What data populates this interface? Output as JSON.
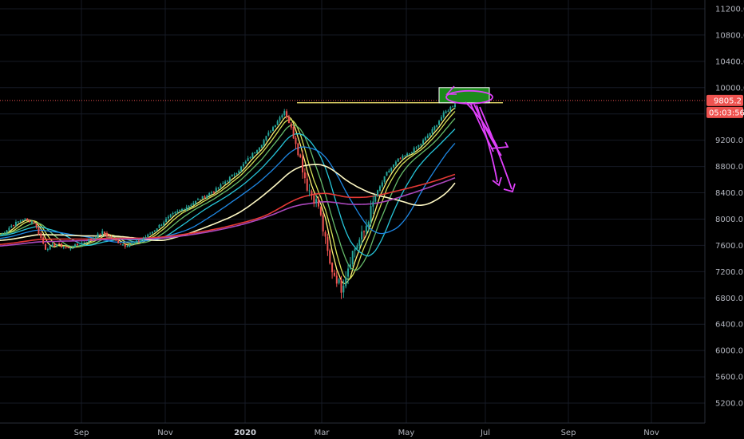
{
  "chart_data": {
    "type": "candlestick",
    "y_axis": {
      "ticks": [
        "11200.0",
        "10800.0",
        "10400.0",
        "10000.0",
        "9600.0",
        "9200.0",
        "8800.0",
        "8400.0",
        "8000.0",
        "7600.0",
        "7200.0",
        "6800.0",
        "6400.0",
        "6000.0",
        "5600.0",
        "5200.0"
      ],
      "range": [
        5100,
        11300
      ]
    },
    "x_axis": {
      "ticks": [
        {
          "label": "Sep",
          "bold": false
        },
        {
          "label": "Nov",
          "bold": false
        },
        {
          "label": "2020",
          "bold": true
        },
        {
          "label": "Mar",
          "bold": false
        },
        {
          "label": "May",
          "bold": false
        },
        {
          "label": "Jul",
          "bold": false
        },
        {
          "label": "Sep",
          "bold": false
        },
        {
          "label": "Nov",
          "bold": false
        }
      ]
    },
    "last_price": {
      "value": "9805.2",
      "color": "#ef5350"
    },
    "countdown": {
      "value": "05:03:56",
      "color": "#ef5350"
    },
    "resistance_level": 9770,
    "close_path": [
      [
        0,
        7750
      ],
      [
        5,
        7900
      ],
      [
        10,
        8000
      ],
      [
        15,
        7950
      ],
      [
        20,
        7550
      ],
      [
        25,
        7620
      ],
      [
        30,
        7550
      ],
      [
        35,
        7620
      ],
      [
        40,
        7700
      ],
      [
        45,
        7800
      ],
      [
        50,
        7680
      ],
      [
        55,
        7600
      ],
      [
        60,
        7650
      ],
      [
        65,
        7750
      ],
      [
        70,
        7900
      ],
      [
        75,
        8050
      ],
      [
        80,
        8150
      ],
      [
        85,
        8250
      ],
      [
        90,
        8350
      ],
      [
        95,
        8450
      ],
      [
        100,
        8600
      ],
      [
        105,
        8750
      ],
      [
        110,
        8950
      ],
      [
        115,
        9150
      ],
      [
        120,
        9400
      ],
      [
        125,
        9650
      ],
      [
        130,
        9200
      ],
      [
        135,
        8500
      ],
      [
        140,
        8200
      ],
      [
        145,
        7300
      ],
      [
        150,
        6950
      ],
      [
        155,
        7500
      ],
      [
        160,
        7800
      ],
      [
        165,
        8350
      ],
      [
        170,
        8700
      ],
      [
        175,
        8900
      ],
      [
        180,
        9000
      ],
      [
        185,
        9150
      ],
      [
        190,
        9350
      ],
      [
        195,
        9600
      ],
      [
        200,
        9760
      ]
    ],
    "series": [
      {
        "color": "#fff176",
        "period": 5
      },
      {
        "color": "#d4e157",
        "period": 8
      },
      {
        "color": "#66bb6a",
        "period": 13
      },
      {
        "color": "#26c6da",
        "period": 21
      },
      {
        "color": "#1e88e5",
        "period": 34
      },
      {
        "color": "#fff9c4",
        "period": 55
      },
      {
        "color": "#e53935",
        "period": 100
      },
      {
        "color": "#ab47bc",
        "period": 120
      }
    ],
    "colors": {
      "up": "#26a69a",
      "down": "#ef5350",
      "drawing": "#e040fb",
      "highlight_box": "#1b8a1b",
      "resistance_line": "#fff176"
    }
  }
}
